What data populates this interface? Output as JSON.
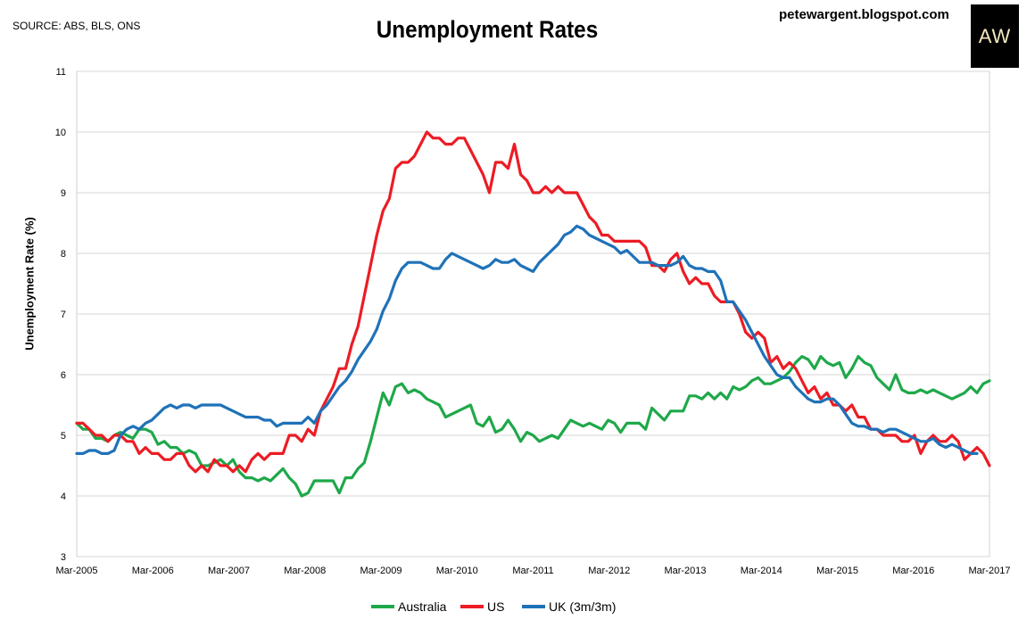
{
  "header": {
    "source": "SOURCE: ABS, BLS, ONS",
    "blog": "petewargent.blogspot.com",
    "logo_text": "AW"
  },
  "chart_data": {
    "type": "line",
    "title": "Unemployment Rates",
    "ylabel": "Unemployment Rate (%)",
    "xlabel": "",
    "ylim": [
      3,
      11
    ],
    "yticks": [
      3,
      4,
      5,
      6,
      7,
      8,
      9,
      10,
      11
    ],
    "x_ticks": [
      "Mar-2005",
      "Mar-2006",
      "Mar-2007",
      "Mar-2008",
      "Mar-2009",
      "Mar-2010",
      "Mar-2011",
      "Mar-2012",
      "Mar-2013",
      "Mar-2014",
      "Mar-2015",
      "Mar-2016",
      "Mar-2017"
    ],
    "x_start": "Mar-2005",
    "x_end": "Mar-2017",
    "frequency": "monthly",
    "grid": true,
    "legend": "bottom",
    "series": [
      {
        "name": "Australia",
        "color": "#1fa84a",
        "values": [
          5.2,
          5.1,
          5.1,
          4.95,
          4.95,
          4.9,
          5.0,
          5.05,
          5.0,
          4.95,
          5.1,
          5.1,
          5.05,
          4.85,
          4.9,
          4.8,
          4.8,
          4.7,
          4.75,
          4.7,
          4.5,
          4.5,
          4.55,
          4.6,
          4.5,
          4.6,
          4.4,
          4.3,
          4.3,
          4.25,
          4.3,
          4.25,
          4.35,
          4.45,
          4.3,
          4.2,
          4.0,
          4.05,
          4.25,
          4.25,
          4.25,
          4.25,
          4.05,
          4.3,
          4.3,
          4.45,
          4.55,
          4.9,
          5.3,
          5.7,
          5.5,
          5.8,
          5.85,
          5.7,
          5.75,
          5.7,
          5.6,
          5.55,
          5.5,
          5.3,
          5.35,
          5.4,
          5.45,
          5.5,
          5.2,
          5.15,
          5.3,
          5.05,
          5.1,
          5.25,
          5.1,
          4.9,
          5.05,
          5.0,
          4.9,
          4.95,
          5.0,
          4.95,
          5.1,
          5.25,
          5.2,
          5.15,
          5.2,
          5.15,
          5.1,
          5.25,
          5.2,
          5.05,
          5.2,
          5.2,
          5.2,
          5.1,
          5.45,
          5.35,
          5.25,
          5.4,
          5.4,
          5.4,
          5.65,
          5.65,
          5.6,
          5.7,
          5.6,
          5.7,
          5.6,
          5.8,
          5.75,
          5.8,
          5.9,
          5.95,
          5.85,
          5.85,
          5.9,
          5.95,
          6.05,
          6.2,
          6.3,
          6.25,
          6.1,
          6.3,
          6.2,
          6.15,
          6.2,
          5.95,
          6.1,
          6.3,
          6.2,
          6.15,
          5.95,
          5.85,
          5.75,
          6.0,
          5.75,
          5.7,
          5.7,
          5.75,
          5.7,
          5.75,
          5.7,
          5.65,
          5.6,
          5.65,
          5.7,
          5.8,
          5.7,
          5.85,
          5.9
        ]
      },
      {
        "name": "US",
        "color": "#ec1c24",
        "values": [
          5.2,
          5.2,
          5.1,
          5.0,
          5.0,
          4.9,
          5.0,
          5.0,
          4.9,
          4.9,
          4.7,
          4.8,
          4.7,
          4.7,
          4.6,
          4.6,
          4.7,
          4.7,
          4.5,
          4.4,
          4.5,
          4.4,
          4.6,
          4.5,
          4.5,
          4.4,
          4.5,
          4.4,
          4.6,
          4.7,
          4.6,
          4.7,
          4.7,
          4.7,
          5.0,
          5.0,
          4.9,
          5.1,
          5.0,
          5.4,
          5.6,
          5.8,
          6.1,
          6.1,
          6.5,
          6.8,
          7.3,
          7.8,
          8.3,
          8.7,
          8.9,
          9.4,
          9.5,
          9.5,
          9.6,
          9.8,
          10.0,
          9.9,
          9.9,
          9.8,
          9.8,
          9.9,
          9.9,
          9.7,
          9.5,
          9.3,
          9.0,
          9.5,
          9.5,
          9.4,
          9.8,
          9.3,
          9.2,
          9.0,
          9.0,
          9.1,
          9.0,
          9.1,
          9.0,
          9.0,
          9.0,
          8.8,
          8.6,
          8.5,
          8.3,
          8.3,
          8.2,
          8.2,
          8.2,
          8.2,
          8.2,
          8.1,
          7.8,
          7.8,
          7.7,
          7.9,
          8.0,
          7.7,
          7.5,
          7.6,
          7.5,
          7.5,
          7.3,
          7.2,
          7.2,
          7.2,
          7.0,
          6.7,
          6.6,
          6.7,
          6.6,
          6.2,
          6.3,
          6.1,
          6.2,
          6.1,
          5.9,
          5.7,
          5.8,
          5.6,
          5.7,
          5.5,
          5.5,
          5.4,
          5.5,
          5.3,
          5.3,
          5.1,
          5.1,
          5.0,
          5.0,
          5.0,
          4.9,
          4.9,
          5.0,
          4.7,
          4.9,
          5.0,
          4.9,
          4.9,
          5.0,
          4.9,
          4.6,
          4.7,
          4.8,
          4.7,
          4.5
        ]
      },
      {
        "name": "UK (3m/3m)",
        "color": "#1f72b8",
        "values": [
          4.7,
          4.7,
          4.75,
          4.75,
          4.7,
          4.7,
          4.75,
          5.0,
          5.1,
          5.15,
          5.1,
          5.2,
          5.25,
          5.35,
          5.45,
          5.5,
          5.45,
          5.5,
          5.5,
          5.45,
          5.5,
          5.5,
          5.5,
          5.5,
          5.45,
          5.4,
          5.35,
          5.3,
          5.3,
          5.3,
          5.25,
          5.25,
          5.15,
          5.2,
          5.2,
          5.2,
          5.2,
          5.3,
          5.2,
          5.4,
          5.5,
          5.65,
          5.8,
          5.9,
          6.05,
          6.25,
          6.4,
          6.55,
          6.75,
          7.05,
          7.25,
          7.55,
          7.75,
          7.85,
          7.85,
          7.85,
          7.8,
          7.75,
          7.75,
          7.9,
          8.0,
          7.95,
          7.9,
          7.85,
          7.8,
          7.75,
          7.8,
          7.9,
          7.85,
          7.85,
          7.9,
          7.8,
          7.75,
          7.7,
          7.85,
          7.95,
          8.05,
          8.15,
          8.3,
          8.35,
          8.45,
          8.4,
          8.3,
          8.25,
          8.2,
          8.15,
          8.1,
          8.0,
          8.05,
          7.95,
          7.85,
          7.85,
          7.85,
          7.8,
          7.8,
          7.8,
          7.85,
          7.95,
          7.8,
          7.75,
          7.75,
          7.7,
          7.7,
          7.55,
          7.2,
          7.2,
          7.05,
          6.9,
          6.7,
          6.5,
          6.3,
          6.15,
          6.0,
          5.95,
          5.95,
          5.8,
          5.7,
          5.6,
          5.55,
          5.55,
          5.6,
          5.6,
          5.5,
          5.35,
          5.2,
          5.15,
          5.15,
          5.1,
          5.1,
          5.05,
          5.1,
          5.1,
          5.05,
          5.0,
          4.95,
          4.9,
          4.9,
          4.95,
          4.85,
          4.8,
          4.85,
          4.8,
          4.75,
          4.7,
          4.7
        ]
      }
    ]
  }
}
